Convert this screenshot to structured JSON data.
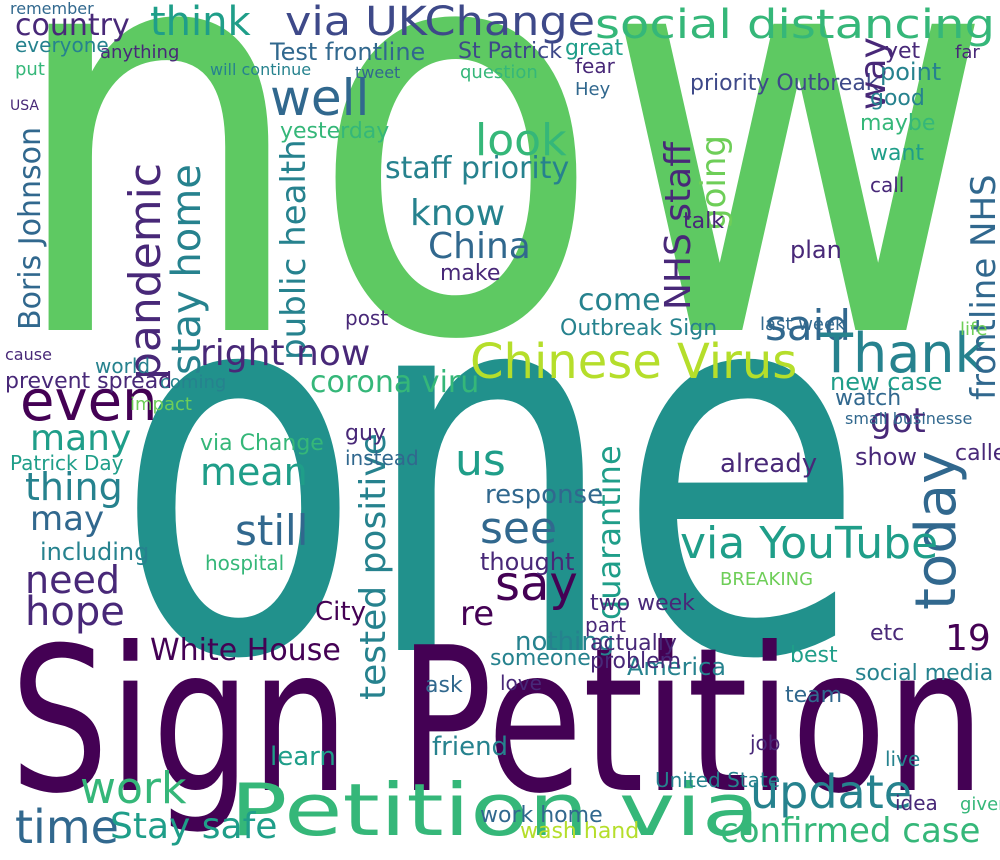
{
  "words": [
    "now",
    "one",
    "Sign Petition",
    "Petition via",
    "think",
    "via UKChange",
    "social distancing",
    "country",
    "St Patrick",
    "Test frontline",
    "priority Outbreak",
    "well",
    "pandemic",
    "stay home",
    "Boris Johnson",
    "public health",
    "right now",
    "corona viru",
    "staff priority",
    "know",
    "China",
    "look",
    "NHS staff",
    "going",
    "said",
    "Thank",
    "Chinese Virus",
    "frontline NHS",
    "way",
    "even",
    "many",
    "thing",
    "may",
    "need",
    "hope",
    "mean",
    "still",
    "us",
    "see",
    "say",
    "re",
    "today",
    "via YouTube",
    "got",
    "new case",
    "quarantine",
    "tested positive",
    "White House",
    "19",
    "work",
    "time",
    "Stay safe",
    "update",
    "confirmed case",
    "Outbreak Sign",
    "come",
    "already",
    "show",
    "called",
    "social media",
    "United State",
    "wash hand",
    "work home",
    "two week",
    "nothing",
    "yesterday",
    "plan",
    "last week",
    "hospital",
    "including",
    "Patrick Day",
    "prevent spread",
    "via Change",
    "City",
    "America",
    "friend",
    "learn",
    "BREAKING",
    "point",
    "good",
    "maybe",
    "want",
    "call",
    "life",
    "watch",
    "remember",
    "everyone",
    "put",
    "USA",
    "cause",
    "world",
    "coming",
    "impact",
    "guy",
    "instead",
    "response",
    "thought",
    "part",
    "actually",
    "problem",
    "love",
    "ask",
    "someone",
    "post",
    "make",
    "talk",
    "Hey",
    "fear",
    "great",
    "question",
    "tweet",
    "will continue",
    "anything",
    "yet",
    "far",
    "small businesse",
    "etc",
    "team",
    "best",
    "job",
    "live",
    "idea",
    "given"
  ]
}
